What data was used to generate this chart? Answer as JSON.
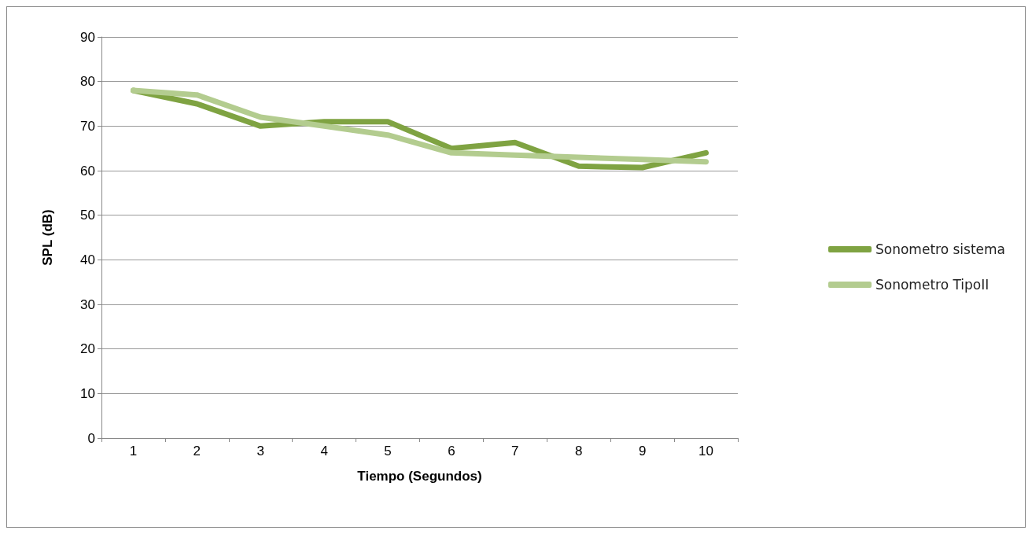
{
  "chart_data": {
    "type": "line",
    "xlabel": "Tiempo (Segundos)",
    "ylabel": "SPL (dB)",
    "categories": [
      "1",
      "2",
      "3",
      "4",
      "5",
      "6",
      "7",
      "8",
      "9",
      "10"
    ],
    "series": [
      {
        "name": "Sonometro sistema",
        "color": "#7fa342",
        "values": [
          78,
          75,
          70,
          71,
          71,
          65,
          66.3,
          61,
          60.7,
          64
        ]
      },
      {
        "name": "Sonometro TipoII",
        "color": "#b3cc8f",
        "values": [
          78,
          77,
          72,
          70,
          68,
          64,
          63.5,
          63,
          62.5,
          62
        ]
      }
    ],
    "ylim": [
      0,
      90
    ],
    "yticks": [
      0,
      10,
      20,
      30,
      40,
      50,
      60,
      70,
      80,
      90
    ],
    "grid": "y",
    "legend": "right",
    "marker": "none",
    "line_style": "solid"
  }
}
